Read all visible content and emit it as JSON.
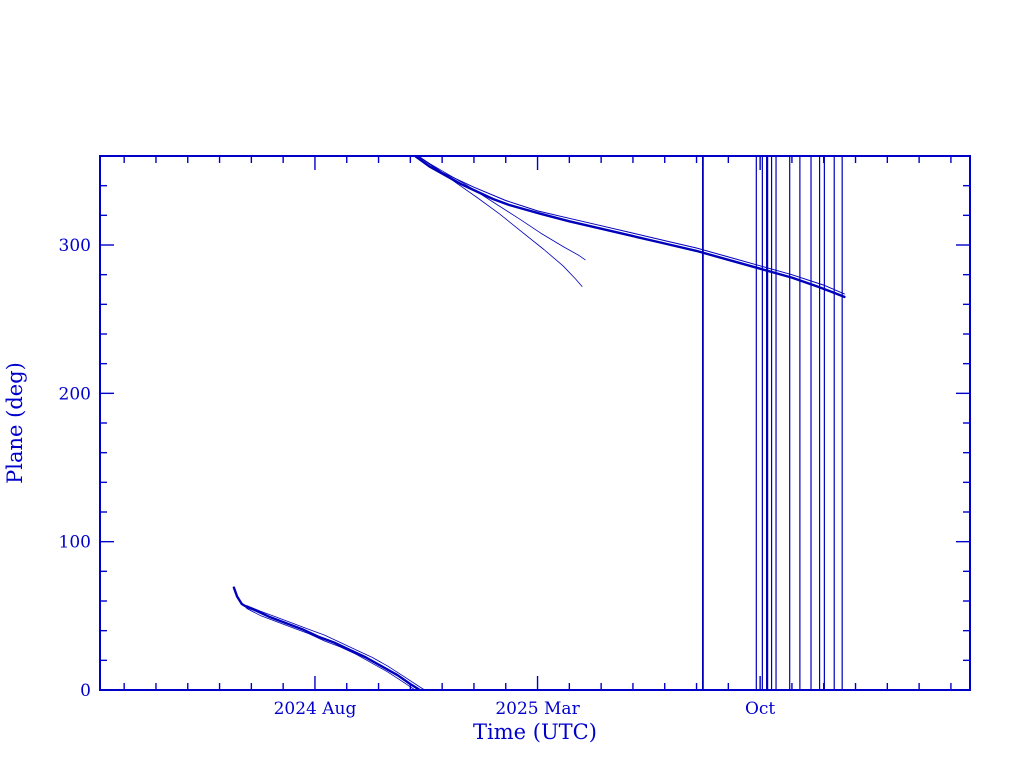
{
  "chart_data": {
    "type": "line",
    "title": "",
    "xlabel": "Time (UTC)",
    "ylabel": "Plane (deg)",
    "x_unit": "months since 2024-01-01",
    "xlim": [
      0.24,
      27.6
    ],
    "ylim": [
      0,
      360
    ],
    "grid": false,
    "legend": "none",
    "colors": {
      "frame": "#0000CC",
      "series": "#0000BB",
      "text": "#0000CC",
      "background": "#FFFFFF"
    },
    "x_axis": {
      "major_ticks": [
        {
          "value": 7,
          "label": "2024 Aug"
        },
        {
          "value": 14,
          "label": "2025 Mar"
        },
        {
          "value": 21,
          "label": "Oct"
        }
      ],
      "minor_step": 1
    },
    "y_axis": {
      "major_ticks": [
        {
          "value": 0,
          "label": "0"
        },
        {
          "value": 100,
          "label": "100"
        },
        {
          "value": 200,
          "label": "200"
        },
        {
          "value": 300,
          "label": "300"
        }
      ],
      "minor_step": 20
    },
    "series": [
      {
        "name": "plane-lower-main",
        "width": 2.4,
        "points": [
          [
            4.45,
            69
          ],
          [
            4.55,
            63
          ],
          [
            4.7,
            58
          ],
          [
            4.85,
            56
          ],
          [
            5.1,
            54
          ],
          [
            5.6,
            49
          ],
          [
            6.1,
            45
          ],
          [
            6.6,
            41
          ],
          [
            7.1,
            36
          ],
          [
            7.6,
            32
          ],
          [
            8.1,
            27
          ],
          [
            8.6,
            22
          ],
          [
            9.1,
            16
          ],
          [
            9.6,
            10
          ],
          [
            10.0,
            4
          ],
          [
            10.3,
            0
          ]
        ]
      },
      {
        "name": "plane-lower-thin-low",
        "width": 0.8,
        "points": [
          [
            4.85,
            55
          ],
          [
            5.3,
            50
          ],
          [
            5.8,
            46
          ],
          [
            6.3,
            42
          ],
          [
            6.8,
            38
          ],
          [
            7.3,
            33
          ],
          [
            7.8,
            29
          ],
          [
            8.3,
            24
          ],
          [
            8.8,
            18
          ],
          [
            9.3,
            12
          ],
          [
            9.8,
            5
          ],
          [
            10.15,
            0
          ]
        ]
      },
      {
        "name": "plane-lower-thin-high",
        "width": 0.8,
        "points": [
          [
            4.85,
            57
          ],
          [
            5.3,
            53
          ],
          [
            5.8,
            49
          ],
          [
            6.3,
            45
          ],
          [
            6.8,
            41
          ],
          [
            7.3,
            37
          ],
          [
            7.8,
            32
          ],
          [
            8.3,
            27
          ],
          [
            8.8,
            22
          ],
          [
            9.3,
            16
          ],
          [
            9.8,
            9
          ],
          [
            10.3,
            2
          ],
          [
            10.45,
            0
          ]
        ]
      },
      {
        "name": "plane-upper-main",
        "width": 2.4,
        "points": [
          [
            10.15,
            360
          ],
          [
            10.6,
            353
          ],
          [
            11.1,
            347
          ],
          [
            11.6,
            341
          ],
          [
            12.1,
            336
          ],
          [
            12.6,
            331
          ],
          [
            13.1,
            327
          ],
          [
            13.6,
            324
          ],
          [
            14.1,
            321
          ],
          [
            15,
            316
          ],
          [
            16,
            311
          ],
          [
            17,
            306
          ],
          [
            18,
            301
          ],
          [
            19,
            296
          ],
          [
            20,
            290
          ],
          [
            21,
            284
          ],
          [
            22,
            278
          ],
          [
            22.8,
            272
          ],
          [
            23.3,
            268
          ],
          [
            23.65,
            265
          ]
        ]
      },
      {
        "name": "plane-upper-second",
        "width": 1,
        "points": [
          [
            10.25,
            360
          ],
          [
            11,
            349
          ],
          [
            12,
            339
          ],
          [
            13,
            330
          ],
          [
            14,
            323
          ],
          [
            15,
            318
          ],
          [
            16,
            313
          ],
          [
            17,
            308
          ],
          [
            18,
            303
          ],
          [
            19,
            298
          ],
          [
            20,
            292
          ],
          [
            21,
            286
          ],
          [
            22,
            280
          ],
          [
            23,
            273
          ],
          [
            23.65,
            267
          ]
        ]
      },
      {
        "name": "plane-upper-stray-steep",
        "width": 0.8,
        "points": [
          [
            10.3,
            359
          ],
          [
            10.9,
            350
          ],
          [
            11.5,
            341
          ],
          [
            12.1,
            332
          ],
          [
            12.8,
            321
          ],
          [
            13.5,
            309
          ],
          [
            14.2,
            297
          ],
          [
            14.8,
            286
          ],
          [
            15.2,
            277
          ],
          [
            15.4,
            272
          ]
        ]
      },
      {
        "name": "plane-upper-stray-mid",
        "width": 0.8,
        "points": [
          [
            10.2,
            360
          ],
          [
            11,
            350
          ],
          [
            11.8,
            340
          ],
          [
            12.6,
            329
          ],
          [
            13.4,
            318
          ],
          [
            14.1,
            308
          ],
          [
            14.8,
            299
          ],
          [
            15.3,
            293
          ],
          [
            15.5,
            290
          ]
        ]
      }
    ],
    "vertical_lines": [
      {
        "x": 19.2,
        "w": 1.8
      },
      {
        "x": 20.88,
        "w": 1.2
      },
      {
        "x": 21.07,
        "w": 1.2
      },
      {
        "x": 21.22,
        "w": 2.2
      },
      {
        "x": 21.36,
        "w": 1.2
      },
      {
        "x": 21.5,
        "w": 1.2
      },
      {
        "x": 21.93,
        "w": 1.2
      },
      {
        "x": 22.25,
        "w": 1.2
      },
      {
        "x": 22.6,
        "w": 1.2
      },
      {
        "x": 22.87,
        "w": 1.2
      },
      {
        "x": 23.02,
        "w": 1.2
      },
      {
        "x": 23.33,
        "w": 1.2
      },
      {
        "x": 23.58,
        "w": 1.2
      }
    ]
  }
}
